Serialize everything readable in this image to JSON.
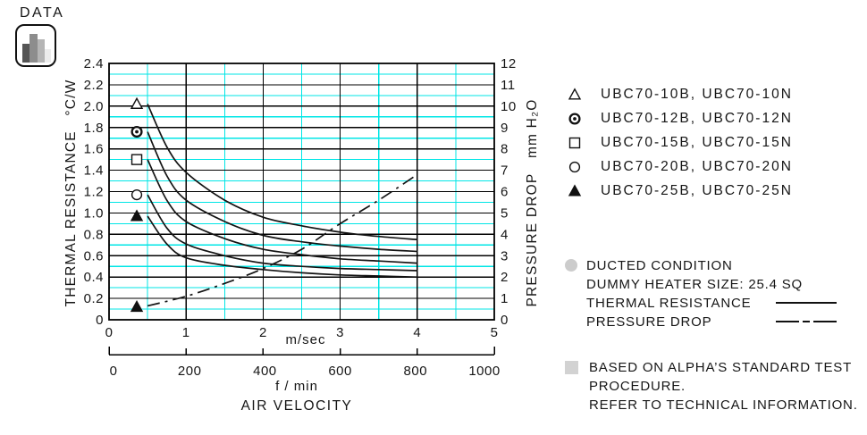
{
  "badge": {
    "label": "DATA",
    "icon": "bar-chart-icon"
  },
  "chart_data": {
    "type": "line",
    "title": "AIR VELOCITY",
    "grid": {
      "on": true,
      "major_color": "#000000",
      "minor_color": "#00e6e6"
    },
    "x_axis": {
      "label": "m/sec",
      "range": [
        0,
        5
      ],
      "tick_labels": [
        "0",
        "1",
        "2",
        "3",
        "4",
        "5"
      ],
      "secondary_label": "f / min",
      "secondary_range": [
        0,
        1000
      ],
      "secondary_tick_labels": [
        "0",
        "200",
        "400",
        "600",
        "800",
        "1000"
      ],
      "title": "AIR VELOCITY"
    },
    "y_left": {
      "label": "THERMAL RESISTANCE   °C/W",
      "unit": "°C/W",
      "range": [
        0,
        2.4
      ],
      "tick_step": 0.2,
      "tick_labels": [
        "0",
        "0.2",
        "0.4",
        "0.6",
        "0.8",
        "1.0",
        "1.2",
        "1.4",
        "1.6",
        "1.8",
        "2.0",
        "2.2",
        "2.4"
      ]
    },
    "y_right": {
      "label": "PRESSURE DROP   mm H₂O",
      "unit": "mm H₂O",
      "range": [
        0,
        12
      ],
      "tick_step": 1,
      "tick_labels": [
        "0",
        "1",
        "2",
        "3",
        "4",
        "5",
        "6",
        "7",
        "8",
        "9",
        "10",
        "11",
        "12"
      ]
    },
    "series": [
      {
        "name": "UBC70-10B, UBC70-10N",
        "axis": "left",
        "line_style": "solid",
        "marker": "triangle-open",
        "marker_point": {
          "x": 0.36,
          "y": 2.02
        },
        "x": [
          0.5,
          0.75,
          1,
          1.5,
          2,
          2.5,
          3,
          3.5,
          4
        ],
        "y": [
          2.02,
          1.62,
          1.38,
          1.12,
          0.96,
          0.88,
          0.82,
          0.78,
          0.75
        ]
      },
      {
        "name": "UBC70-12B, UBC70-12N",
        "axis": "left",
        "line_style": "solid",
        "marker": "circle-dot",
        "marker_point": {
          "x": 0.36,
          "y": 1.76
        },
        "x": [
          0.5,
          0.75,
          1,
          1.5,
          2,
          2.5,
          3,
          3.5,
          4
        ],
        "y": [
          1.76,
          1.35,
          1.12,
          0.92,
          0.79,
          0.73,
          0.69,
          0.66,
          0.64
        ]
      },
      {
        "name": "UBC70-15B, UBC70-15N",
        "axis": "left",
        "line_style": "solid",
        "marker": "square-open",
        "marker_point": {
          "x": 0.36,
          "y": 1.5
        },
        "x": [
          0.5,
          0.75,
          1,
          1.5,
          2,
          2.5,
          3,
          3.5,
          4
        ],
        "y": [
          1.5,
          1.12,
          0.92,
          0.76,
          0.66,
          0.61,
          0.57,
          0.55,
          0.53
        ]
      },
      {
        "name": "UBC70-20B, UBC70-20N",
        "axis": "left",
        "line_style": "solid",
        "marker": "circle-open",
        "marker_point": {
          "x": 0.36,
          "y": 1.17
        },
        "x": [
          0.5,
          0.75,
          1,
          1.5,
          2,
          2.5,
          3,
          3.5,
          4
        ],
        "y": [
          1.17,
          0.86,
          0.71,
          0.6,
          0.53,
          0.5,
          0.48,
          0.47,
          0.46
        ]
      },
      {
        "name": "UBC70-25B, UBC70-25N",
        "axis": "left",
        "line_style": "solid",
        "marker": "triangle-filled",
        "marker_point": {
          "x": 0.36,
          "y": 0.97
        },
        "x": [
          0.5,
          0.75,
          1,
          1.5,
          2,
          2.5,
          3,
          3.5,
          4
        ],
        "y": [
          0.97,
          0.71,
          0.58,
          0.51,
          0.47,
          0.44,
          0.42,
          0.41,
          0.4
        ]
      },
      {
        "name": "PRESSURE DROP",
        "axis": "right",
        "line_style": "dash-dot",
        "marker": "triangle-filled",
        "marker_point": {
          "x": 0.36,
          "y": 0.6
        },
        "x": [
          0.5,
          1,
          1.5,
          2,
          2.5,
          3,
          3.5,
          4
        ],
        "y": [
          0.65,
          1.1,
          1.7,
          2.4,
          3.3,
          4.5,
          5.6,
          6.8
        ]
      }
    ]
  },
  "legend": {
    "items": [
      {
        "marker": "triangle-open",
        "label": "UBC70-10B, UBC70-10N"
      },
      {
        "marker": "circle-dot",
        "label": "UBC70-12B, UBC70-12N"
      },
      {
        "marker": "square-open",
        "label": "UBC70-15B, UBC70-15N"
      },
      {
        "marker": "circle-open",
        "label": "UBC70-20B, UBC70-20N"
      },
      {
        "marker": "triangle-filled",
        "label": "UBC70-25B, UBC70-25N"
      }
    ]
  },
  "notes": {
    "ducted": {
      "bullet": "circle-bullet-icon",
      "line1": "DUCTED CONDITION",
      "line2": "DUMMY HEATER SIZE: 25.4 SQ",
      "thermal_label": "THERMAL RESISTANCE",
      "thermal_line_style": "solid",
      "pressure_label": "PRESSURE DROP",
      "pressure_line_style": "dash-dot"
    },
    "test": {
      "bullet": "square-bullet-icon",
      "line1": "BASED ON ALPHA’S STANDARD TEST",
      "line2": "PROCEDURE.",
      "line3": "REFER TO TECHNICAL INFORMATION."
    }
  }
}
